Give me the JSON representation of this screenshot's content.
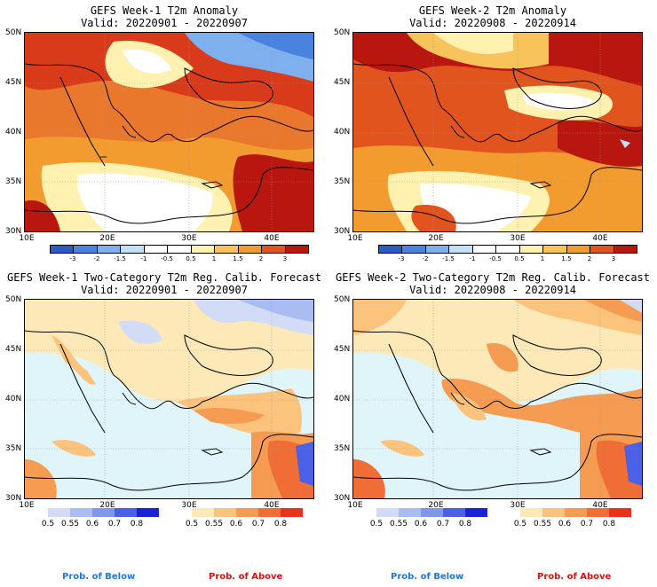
{
  "anomaly_colors": [
    "#2a5cc8",
    "#4a82e0",
    "#7fb0ee",
    "#c4e0f8",
    "#ffffff",
    "#ffffff",
    "#fff2b0",
    "#f7c35a",
    "#f29b2e",
    "#e2541e",
    "#b8160e"
  ],
  "anomaly_ticks": [
    "-3",
    "-2",
    "-1.5",
    "-1",
    "-0.5",
    "0.5",
    "1",
    "1.5",
    "2",
    "3"
  ],
  "below_colors": [
    "#d2dcf7",
    "#a9bdf2",
    "#7f97ec",
    "#4a60e6",
    "#1a22d6"
  ],
  "above_colors": [
    "#fde9b7",
    "#fcc37c",
    "#f59b52",
    "#f06e35",
    "#e8321c"
  ],
  "prob_ticks": [
    "0.5",
    "0.55",
    "0.6",
    "0.7",
    "0.8"
  ],
  "lat_labels": [
    "50N",
    "45N",
    "40N",
    "35N",
    "30N"
  ],
  "lon_labels": [
    "10E",
    "20E",
    "30E",
    "40E"
  ],
  "panels": [
    {
      "title": "GEFS Week-1 T2m Anomaly",
      "valid": "Valid: 20220901 - 20220907"
    },
    {
      "title": "GEFS Week-2 T2m Anomaly",
      "valid": "Valid: 20220908 - 20220914"
    },
    {
      "title": "GEFS Week-1 Two-Category T2m Reg. Calib. Forecast",
      "valid": "Valid: 20220901 - 20220907"
    },
    {
      "title": "GEFS Week-2 Two-Category T2m Reg. Calib. Forecast",
      "valid": "Valid: 20220908 - 20220914"
    }
  ],
  "legend": {
    "below_label": "Prob. of Below",
    "above_label": "Prob. of Above",
    "below_color": "#2277dd",
    "above_color": "#dd1111"
  }
}
